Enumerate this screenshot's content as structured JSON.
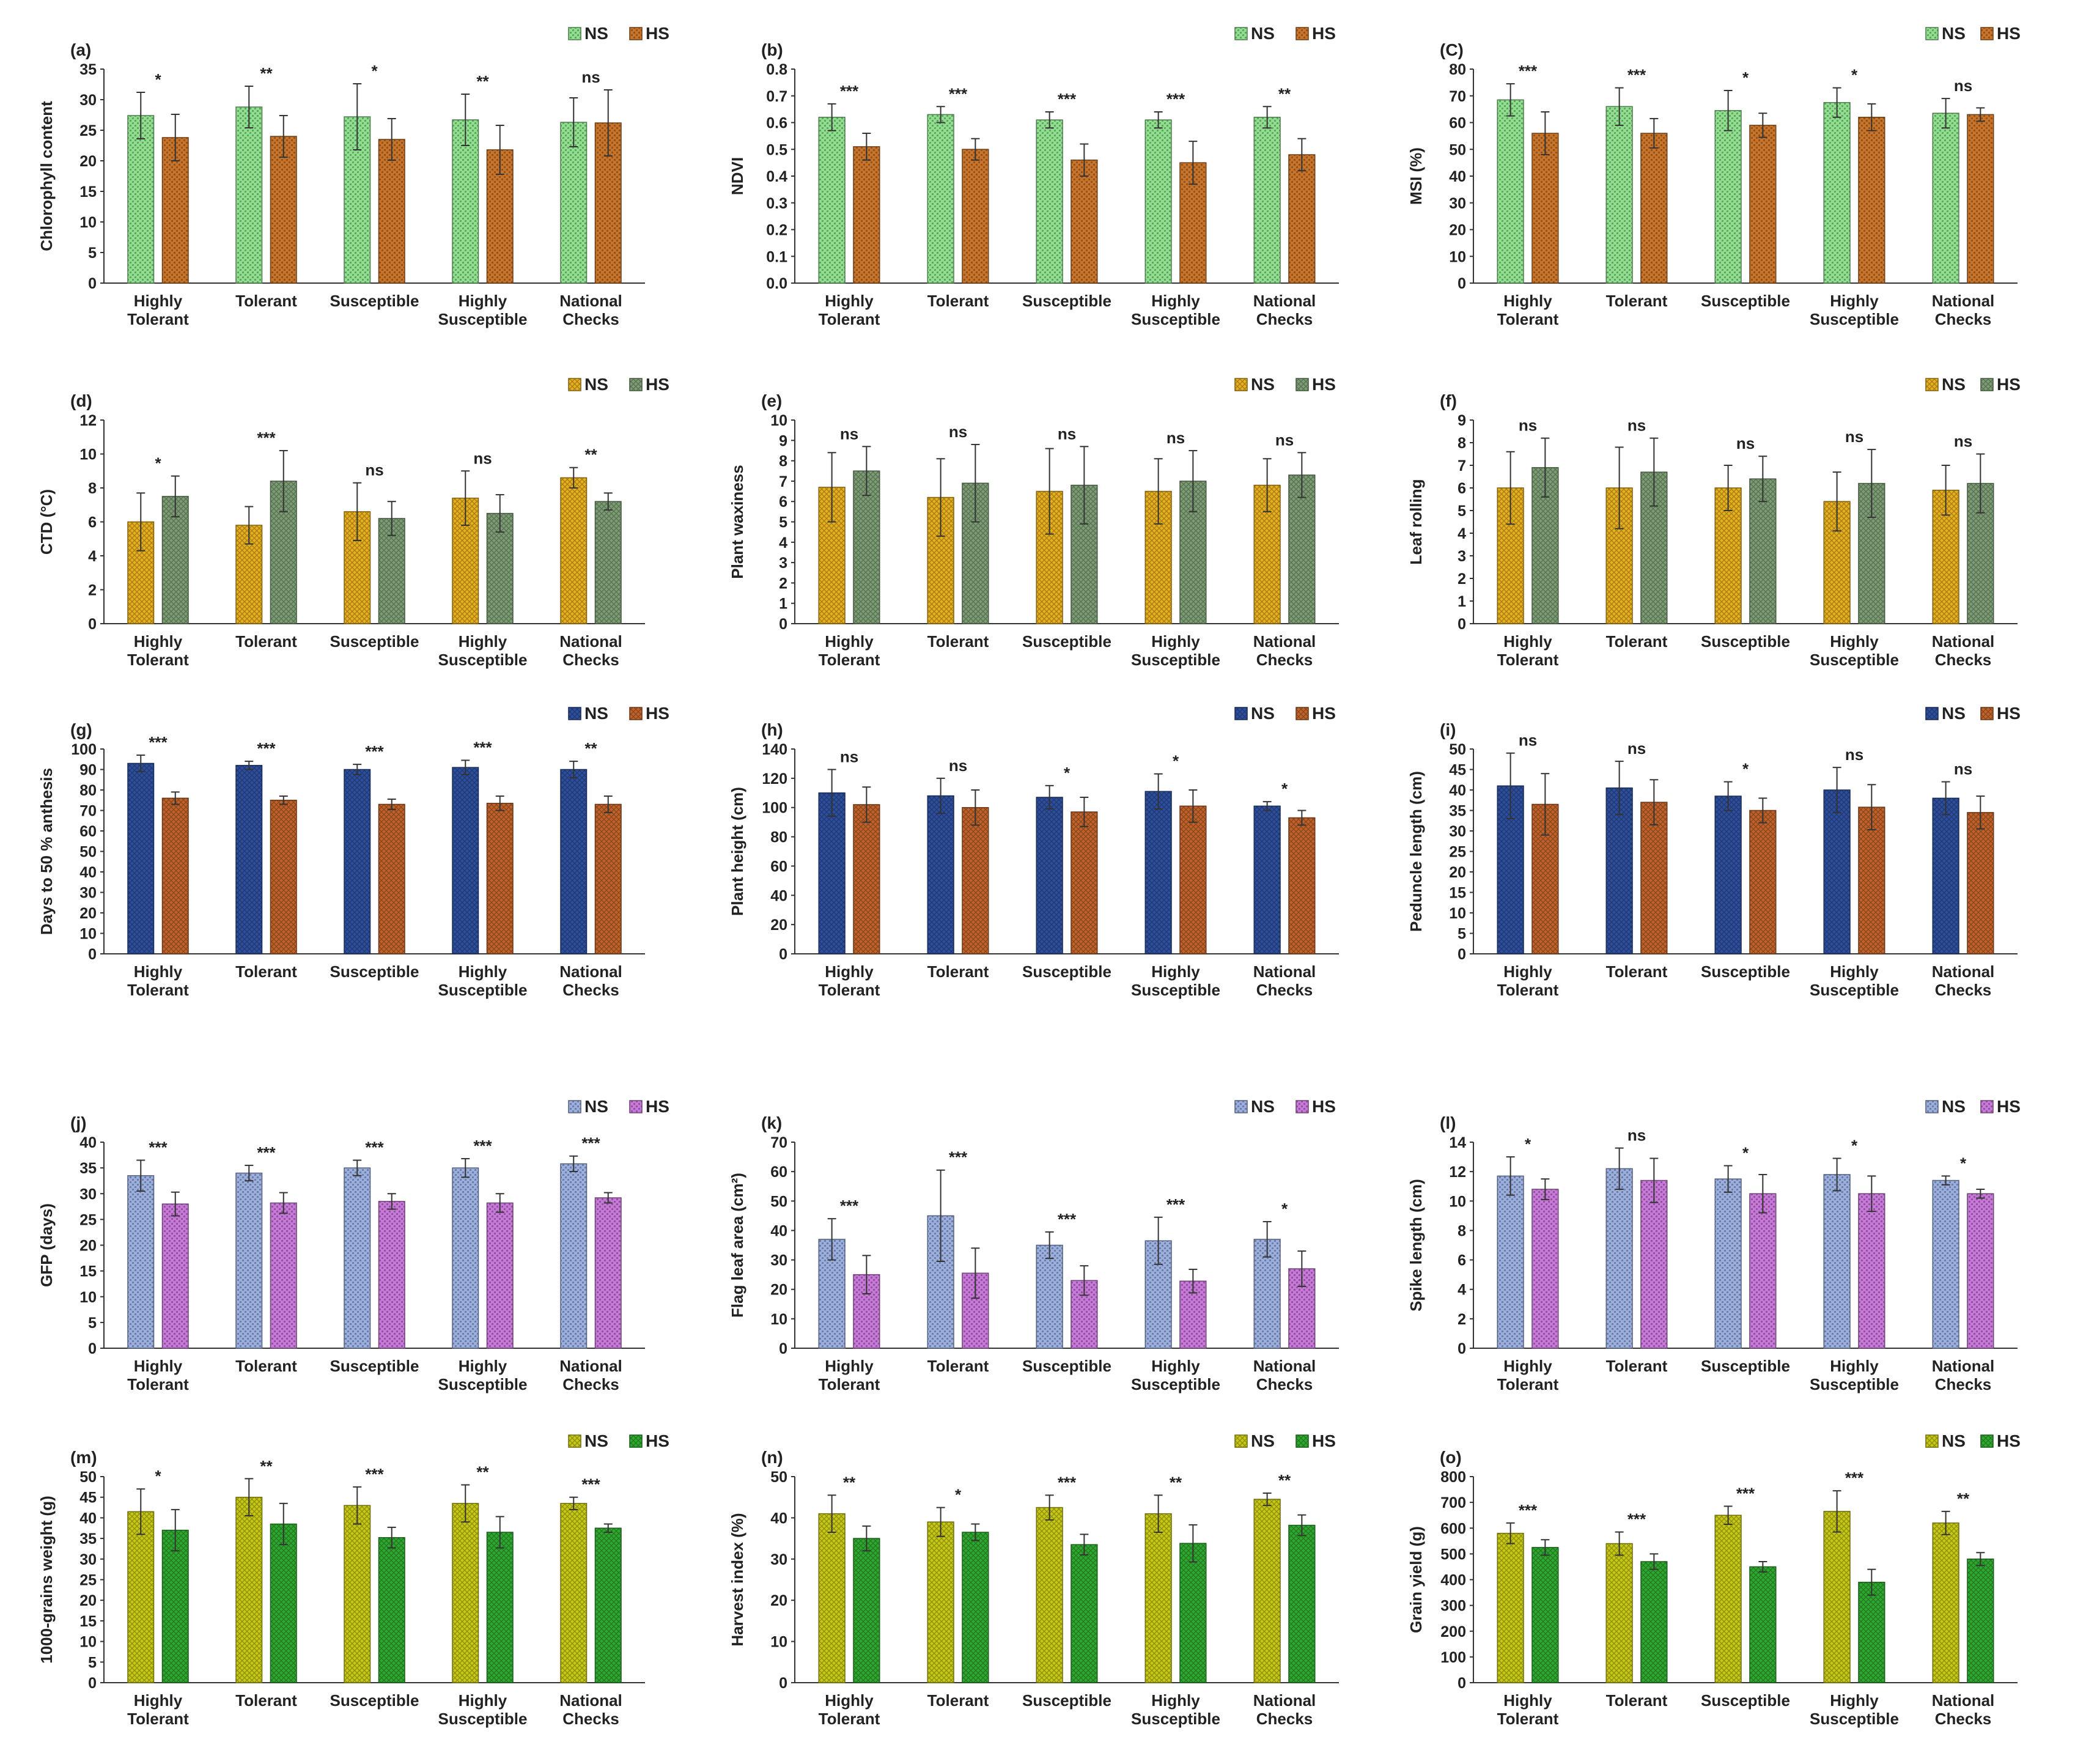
{
  "categories": [
    [
      "Highly",
      "Tolerant"
    ],
    [
      "Tolerant"
    ],
    [
      "Susceptible"
    ],
    [
      "Highly",
      "Susceptible"
    ],
    [
      "National",
      "Checks"
    ]
  ],
  "legend": [
    "NS",
    "HS"
  ],
  "colors": {
    "green_light": "#8ee08e",
    "orange": "#c8732a",
    "gold": "#e8b020",
    "sage": "#7d9e74",
    "navy": "#2e4f9e",
    "rust": "#c0622a",
    "periwinkle": "#9aaee0",
    "violet": "#c878d8",
    "olive": "#c8c818",
    "green": "#2fa82f"
  },
  "chart_data": [
    {
      "label": "(a)",
      "type": "bar",
      "ylabel": "Chlorophyll content",
      "ylim": [
        0,
        35
      ],
      "ticks": [
        0,
        5,
        10,
        15,
        20,
        25,
        30,
        35
      ],
      "pattern": "dots",
      "colors": [
        "green_light",
        "orange"
      ],
      "series": [
        {
          "name": "NS",
          "values": [
            27.4,
            28.8,
            27.2,
            26.7,
            26.3
          ],
          "errors": [
            3.8,
            3.4,
            5.4,
            4.2,
            4.0
          ]
        },
        {
          "name": "HS",
          "values": [
            23.8,
            24.0,
            23.5,
            21.8,
            26.2
          ],
          "errors": [
            3.8,
            3.4,
            3.4,
            4.0,
            5.4
          ]
        }
      ],
      "sig": [
        "*",
        "**",
        "*",
        "**",
        "ns"
      ]
    },
    {
      "label": "(b)",
      "type": "bar",
      "ylabel": "NDVI",
      "ylim": [
        0,
        0.8
      ],
      "ticks": [
        "0.0",
        "0.1",
        "0.2",
        "0.3",
        "0.4",
        "0.5",
        "0.6",
        "0.7",
        "0.8"
      ],
      "pattern": "dots",
      "colors": [
        "green_light",
        "orange"
      ],
      "series": [
        {
          "name": "NS",
          "values": [
            0.62,
            0.63,
            0.61,
            0.61,
            0.62
          ],
          "errors": [
            0.05,
            0.03,
            0.03,
            0.03,
            0.04
          ]
        },
        {
          "name": "HS",
          "values": [
            0.51,
            0.5,
            0.46,
            0.45,
            0.48
          ],
          "errors": [
            0.05,
            0.04,
            0.06,
            0.08,
            0.06
          ]
        }
      ],
      "sig": [
        "***",
        "***",
        "***",
        "***",
        "**"
      ]
    },
    {
      "label": "(C)",
      "type": "bar",
      "ylabel": "MSI (%)",
      "ylim": [
        0,
        80
      ],
      "ticks": [
        0,
        10,
        20,
        30,
        40,
        50,
        60,
        70,
        80
      ],
      "pattern": "dots",
      "colors": [
        "green_light",
        "orange"
      ],
      "series": [
        {
          "name": "NS",
          "values": [
            68.5,
            66.0,
            64.5,
            67.5,
            63.5
          ],
          "errors": [
            6.0,
            7.0,
            7.5,
            5.5,
            5.5
          ]
        },
        {
          "name": "HS",
          "values": [
            56.0,
            56.0,
            59.0,
            62.0,
            63.0
          ],
          "errors": [
            8.0,
            5.5,
            4.5,
            5.0,
            2.5
          ]
        }
      ],
      "sig": [
        "***",
        "***",
        "*",
        "*",
        "ns"
      ]
    },
    {
      "label": "(d)",
      "type": "bar",
      "ylabel": "CTD (°C)",
      "ylim": [
        0,
        12
      ],
      "ticks": [
        0,
        2,
        4,
        6,
        8,
        10,
        12
      ],
      "pattern": "cross",
      "colors": [
        "gold",
        "sage"
      ],
      "series": [
        {
          "name": "NS",
          "values": [
            6.0,
            5.8,
            6.6,
            7.4,
            8.6
          ],
          "errors": [
            1.7,
            1.1,
            1.7,
            1.6,
            0.6
          ]
        },
        {
          "name": "HS",
          "values": [
            7.5,
            8.4,
            6.2,
            6.5,
            7.2
          ],
          "errors": [
            1.2,
            1.8,
            1.0,
            1.1,
            0.5
          ]
        }
      ],
      "sig": [
        "*",
        "***",
        "ns",
        "ns",
        "**"
      ]
    },
    {
      "label": "(e)",
      "type": "bar",
      "ylabel": "Plant waxiness",
      "ylim": [
        0,
        10
      ],
      "ticks": [
        0,
        1,
        2,
        3,
        4,
        5,
        6,
        7,
        8,
        9,
        10
      ],
      "pattern": "cross",
      "colors": [
        "gold",
        "sage"
      ],
      "series": [
        {
          "name": "NS",
          "values": [
            6.7,
            6.2,
            6.5,
            6.5,
            6.8
          ],
          "errors": [
            1.7,
            1.9,
            2.1,
            1.6,
            1.3
          ]
        },
        {
          "name": "HS",
          "values": [
            7.5,
            6.9,
            6.8,
            7.0,
            7.3
          ],
          "errors": [
            1.2,
            1.9,
            1.9,
            1.5,
            1.1
          ]
        }
      ],
      "sig": [
        "ns",
        "ns",
        "ns",
        "ns",
        "ns"
      ]
    },
    {
      "label": "(f)",
      "type": "bar",
      "ylabel": "Leaf rolling",
      "ylim": [
        0,
        9
      ],
      "ticks": [
        0,
        1,
        2,
        3,
        4,
        5,
        6,
        7,
        8,
        9
      ],
      "pattern": "cross",
      "colors": [
        "gold",
        "sage"
      ],
      "series": [
        {
          "name": "NS",
          "values": [
            6.0,
            6.0,
            6.0,
            5.4,
            5.9
          ],
          "errors": [
            1.6,
            1.8,
            1.0,
            1.3,
            1.1
          ]
        },
        {
          "name": "HS",
          "values": [
            6.9,
            6.7,
            6.4,
            6.2,
            6.2
          ],
          "errors": [
            1.3,
            1.5,
            1.0,
            1.5,
            1.3
          ]
        }
      ],
      "sig": [
        "ns",
        "ns",
        "ns",
        "ns",
        "ns"
      ]
    },
    {
      "label": "(g)",
      "type": "bar",
      "ylabel": "Days to 50 % anthesis",
      "ylim": [
        0,
        100
      ],
      "ticks": [
        0,
        10,
        20,
        30,
        40,
        50,
        60,
        70,
        80,
        90,
        100
      ],
      "pattern": "cross",
      "colors": [
        "navy",
        "rust"
      ],
      "series": [
        {
          "name": "NS",
          "values": [
            93,
            92,
            90,
            91,
            90
          ],
          "errors": [
            4,
            2,
            2.5,
            3.5,
            4
          ]
        },
        {
          "name": "HS",
          "values": [
            76,
            75,
            73,
            73.5,
            73
          ],
          "errors": [
            3,
            2,
            2.5,
            3.5,
            4
          ]
        }
      ],
      "sig": [
        "***",
        "***",
        "***",
        "***",
        "**"
      ]
    },
    {
      "label": "(h)",
      "type": "bar",
      "ylabel": "Plant height (cm)",
      "ylim": [
        0,
        140
      ],
      "ticks": [
        0,
        20,
        40,
        60,
        80,
        100,
        120,
        140
      ],
      "pattern": "cross",
      "colors": [
        "navy",
        "rust"
      ],
      "series": [
        {
          "name": "NS",
          "values": [
            110,
            108,
            107,
            111,
            101
          ],
          "errors": [
            16,
            12,
            8,
            12,
            3
          ]
        },
        {
          "name": "HS",
          "values": [
            102,
            100,
            97,
            101,
            93
          ],
          "errors": [
            12,
            12,
            10,
            11,
            5
          ]
        }
      ],
      "sig": [
        "ns",
        "ns",
        "*",
        "*",
        "*"
      ]
    },
    {
      "label": "(i)",
      "type": "bar",
      "ylabel": "Peduncle length (cm)",
      "ylim": [
        0,
        50
      ],
      "ticks": [
        0,
        5,
        10,
        15,
        20,
        25,
        30,
        35,
        40,
        45,
        50
      ],
      "pattern": "cross",
      "colors": [
        "navy",
        "rust"
      ],
      "series": [
        {
          "name": "NS",
          "values": [
            41,
            40.5,
            38.5,
            40,
            38
          ],
          "errors": [
            8,
            6.5,
            3.5,
            5.5,
            4
          ]
        },
        {
          "name": "HS",
          "values": [
            36.5,
            37,
            35,
            35.8,
            34.5
          ],
          "errors": [
            7.5,
            5.5,
            3,
            5.5,
            4
          ]
        }
      ],
      "sig": [
        "ns",
        "ns",
        "*",
        "ns",
        "ns"
      ]
    },
    {
      "label": "(j)",
      "type": "bar",
      "ylabel": "GFP (days)",
      "ylim": [
        0,
        40
      ],
      "ticks": [
        0,
        5,
        10,
        15,
        20,
        25,
        30,
        35,
        40
      ],
      "pattern": "dots",
      "colors": [
        "periwinkle",
        "violet"
      ],
      "series": [
        {
          "name": "NS",
          "values": [
            33.5,
            34,
            35,
            35,
            35.8
          ],
          "errors": [
            3,
            1.5,
            1.5,
            1.8,
            1.5
          ]
        },
        {
          "name": "HS",
          "values": [
            28,
            28.2,
            28.5,
            28.2,
            29.2
          ],
          "errors": [
            2.3,
            2,
            1.5,
            1.8,
            1
          ]
        }
      ],
      "sig": [
        "***",
        "***",
        "***",
        "***",
        "***"
      ]
    },
    {
      "label": "(k)",
      "type": "bar",
      "ylabel": "Flag leaf area (cm²)",
      "ylim": [
        0,
        70
      ],
      "ticks": [
        0,
        10,
        20,
        30,
        40,
        50,
        60,
        70
      ],
      "pattern": "dots",
      "colors": [
        "periwinkle",
        "violet"
      ],
      "series": [
        {
          "name": "NS",
          "values": [
            37,
            45,
            35,
            36.5,
            37
          ],
          "errors": [
            7,
            15.5,
            4.5,
            8,
            6
          ]
        },
        {
          "name": "HS",
          "values": [
            25,
            25.5,
            23,
            22.8,
            27
          ],
          "errors": [
            6.5,
            8.5,
            5,
            4,
            6
          ]
        }
      ],
      "sig": [
        "***",
        "***",
        "***",
        "***",
        "*"
      ]
    },
    {
      "label": "(l)",
      "type": "bar",
      "ylabel": "Spike length (cm)",
      "ylim": [
        0,
        14
      ],
      "ticks": [
        0,
        2,
        4,
        6,
        8,
        10,
        12,
        14
      ],
      "pattern": "dots",
      "colors": [
        "periwinkle",
        "violet"
      ],
      "series": [
        {
          "name": "NS",
          "values": [
            11.7,
            12.2,
            11.5,
            11.8,
            11.4
          ],
          "errors": [
            1.3,
            1.4,
            0.9,
            1.1,
            0.3
          ]
        },
        {
          "name": "HS",
          "values": [
            10.8,
            11.4,
            10.5,
            10.5,
            10.5
          ],
          "errors": [
            0.7,
            1.5,
            1.3,
            1.2,
            0.3
          ]
        }
      ],
      "sig": [
        "*",
        "ns",
        "*",
        "*",
        "*"
      ]
    },
    {
      "label": "(m)",
      "type": "bar",
      "ylabel": "1000-grains weight (g)",
      "ylim": [
        0,
        50
      ],
      "ticks": [
        0,
        5,
        10,
        15,
        20,
        25,
        30,
        35,
        40,
        45,
        50
      ],
      "pattern": "cross",
      "colors": [
        "olive",
        "green"
      ],
      "series": [
        {
          "name": "NS",
          "values": [
            41.5,
            45,
            43,
            43.5,
            43.5
          ],
          "errors": [
            5.5,
            4.5,
            4.5,
            4.5,
            1.5
          ]
        },
        {
          "name": "HS",
          "values": [
            37,
            38.5,
            35.2,
            36.5,
            37.5
          ],
          "errors": [
            5,
            5,
            2.5,
            3.8,
            1
          ]
        }
      ],
      "sig": [
        "*",
        "**",
        "***",
        "**",
        "***"
      ]
    },
    {
      "label": "(n)",
      "type": "bar",
      "ylabel": "Harvest index (%)",
      "ylim": [
        0,
        50
      ],
      "ticks": [
        0,
        10,
        20,
        30,
        40,
        50
      ],
      "pattern": "cross",
      "colors": [
        "olive",
        "green"
      ],
      "series": [
        {
          "name": "NS",
          "values": [
            41,
            39,
            42.5,
            41,
            44.5
          ],
          "errors": [
            4.5,
            3.5,
            3,
            4.5,
            1.5
          ]
        },
        {
          "name": "HS",
          "values": [
            35,
            36.5,
            33.5,
            33.8,
            38.2
          ],
          "errors": [
            3,
            2,
            2.5,
            4.5,
            2.5
          ]
        }
      ],
      "sig": [
        "**",
        "*",
        "***",
        "**",
        "**"
      ]
    },
    {
      "label": "(o)",
      "type": "bar",
      "ylabel": "Grain yield (g)",
      "ylim": [
        0,
        800
      ],
      "ticks": [
        0,
        100,
        200,
        300,
        400,
        500,
        600,
        700,
        800
      ],
      "pattern": "cross",
      "colors": [
        "olive",
        "green"
      ],
      "series": [
        {
          "name": "NS",
          "values": [
            580,
            540,
            650,
            665,
            620
          ],
          "errors": [
            40,
            45,
            35,
            80,
            45
          ]
        },
        {
          "name": "HS",
          "values": [
            525,
            470,
            450,
            390,
            480
          ],
          "errors": [
            30,
            30,
            20,
            50,
            25
          ]
        }
      ],
      "sig": [
        "***",
        "***",
        "***",
        "***",
        "**"
      ]
    }
  ]
}
